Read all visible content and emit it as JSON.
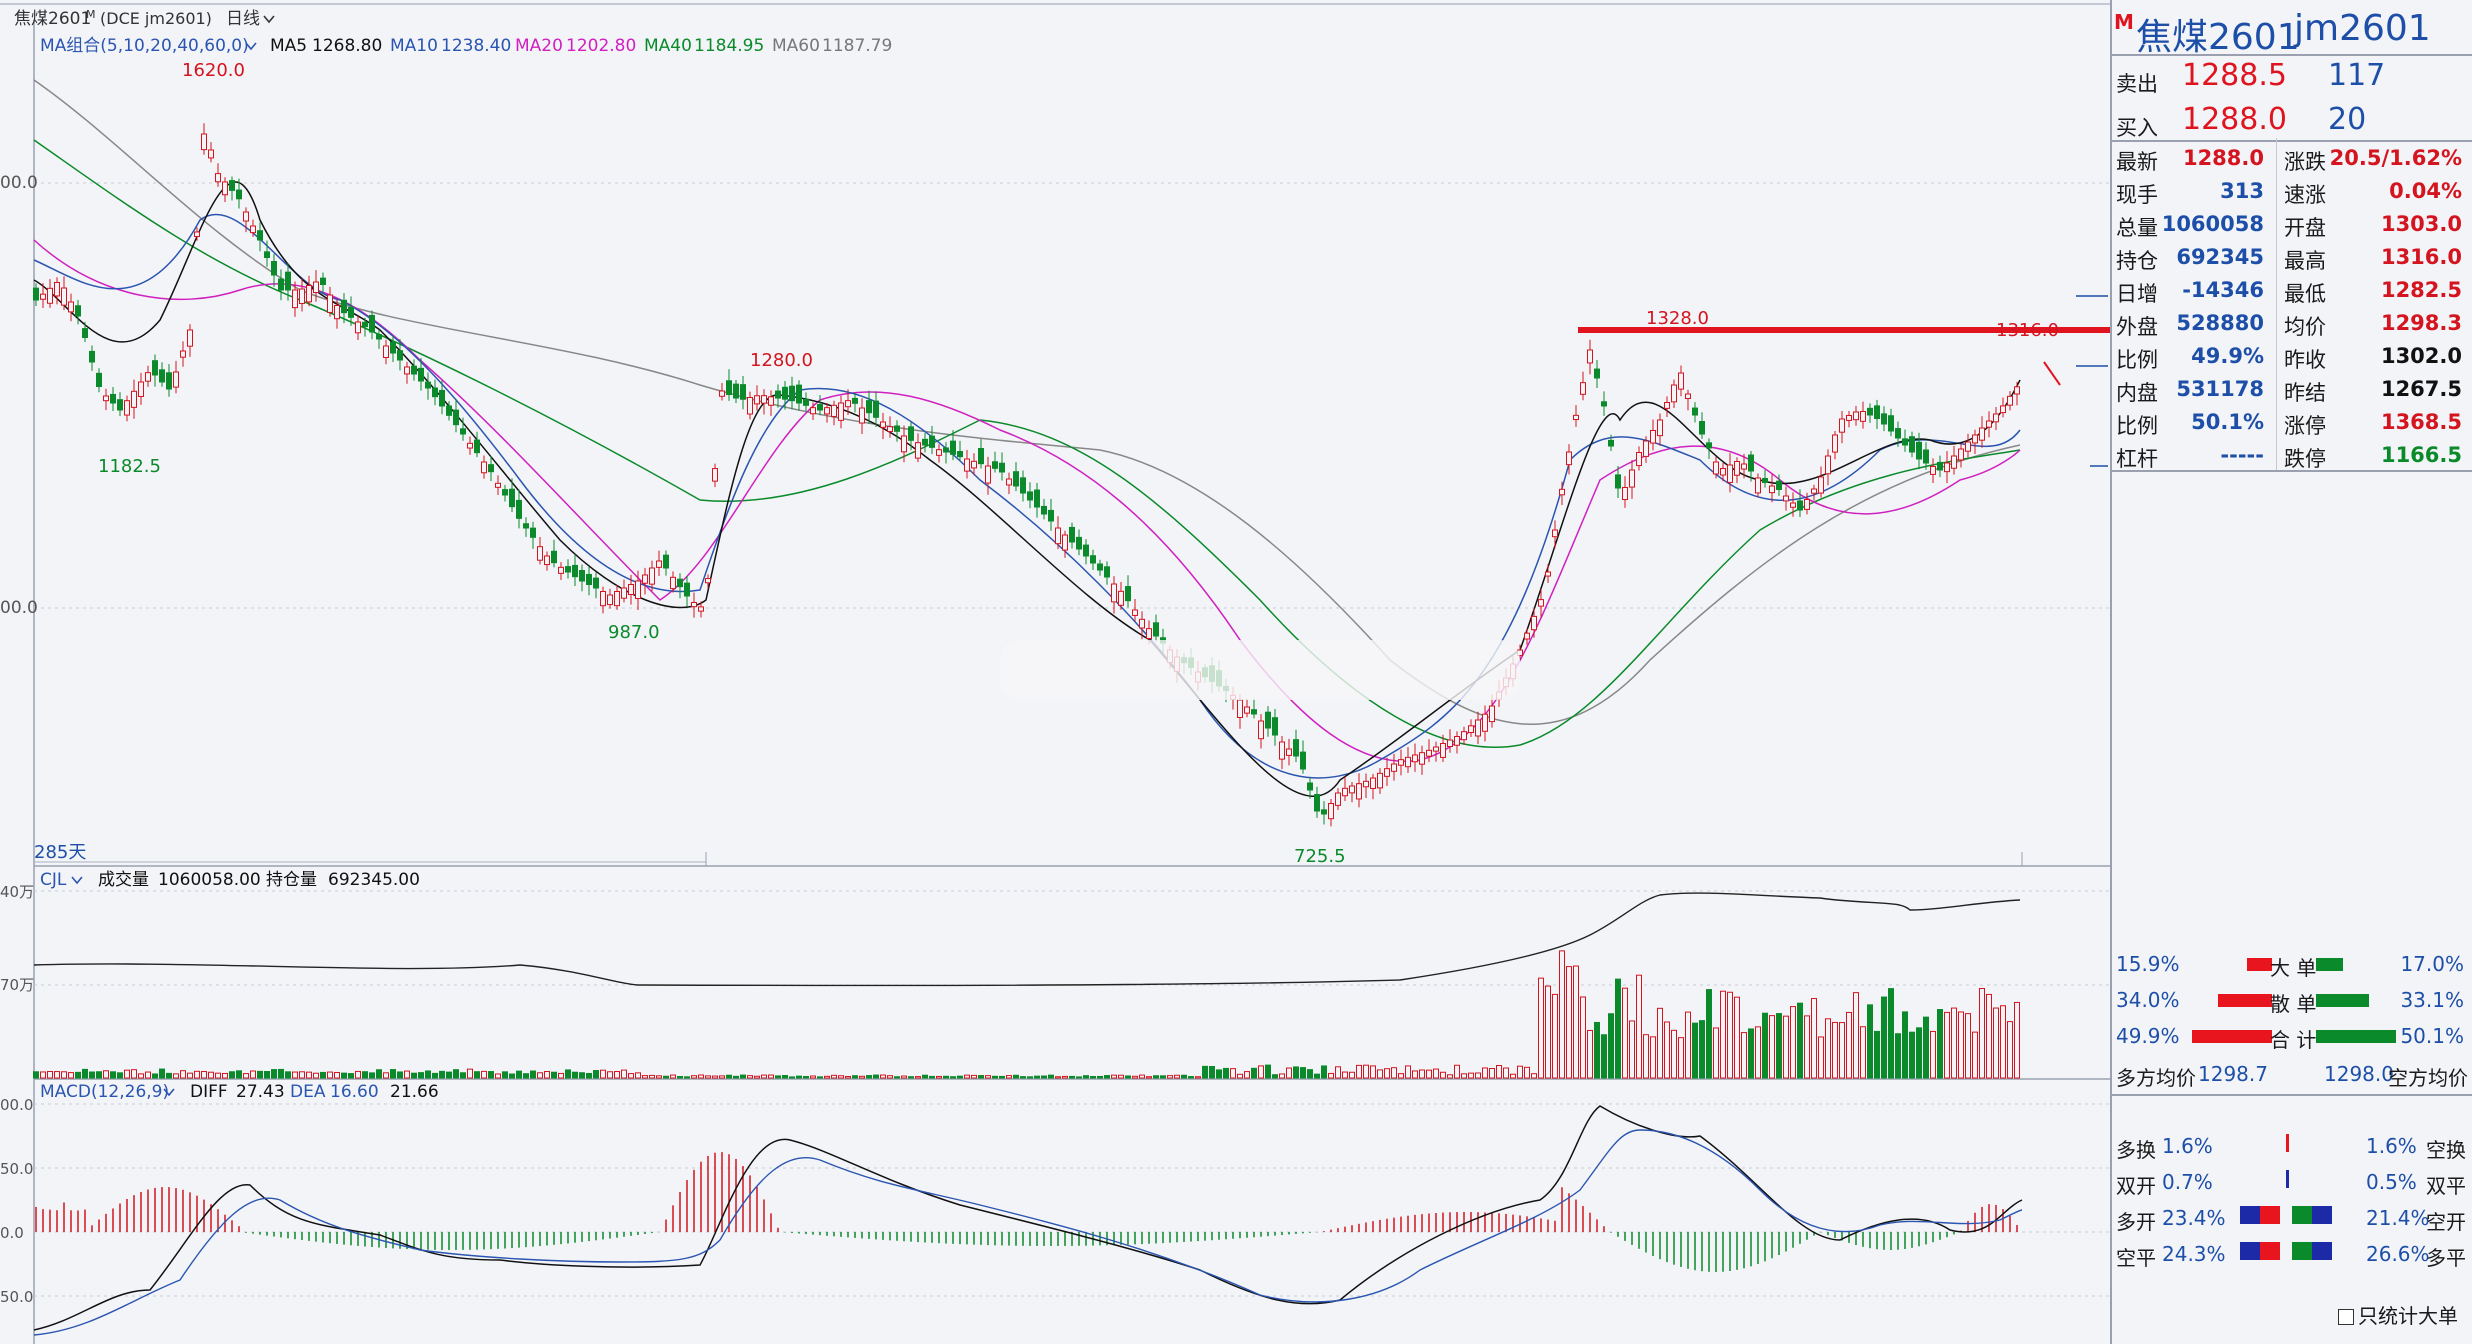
{
  "header": {
    "title": "焦煤2601",
    "title_mark": "M",
    "code_label": "(DCE  jm2601)",
    "period": "日线",
    "period_arrow": "chevron-down-icon"
  },
  "ma_legend": {
    "label": "MA组合(5,10,20,40,60,0)",
    "items": [
      {
        "name": "MA5",
        "value": "1268.80",
        "color": "#111111"
      },
      {
        "name": "MA10",
        "value": "1238.40",
        "color": "#2a55b0"
      },
      {
        "name": "MA20",
        "value": "1202.80",
        "color": "#d020c0"
      },
      {
        "name": "MA40",
        "value": "1184.95",
        "color": "#0a8a2a"
      },
      {
        "name": "MA60",
        "value": "1187.79",
        "color": "#777777"
      }
    ]
  },
  "price_axis_labels": [
    "00.0",
    "00.0"
  ],
  "annotations": {
    "peak": "1620.0",
    "low_left": "1182.5",
    "mid_high": "1280.0",
    "low_mid": "987.0",
    "bottom": "725.5",
    "high_right": "1328.0",
    "last_high": "1316.0",
    "days": "285天"
  },
  "volume_panel": {
    "label": "CJL",
    "volume_label": "成交量",
    "volume": "1060058.00",
    "oi_label": "持仓量",
    "oi": "692345.00",
    "axis_labels": [
      "40万",
      "70万"
    ]
  },
  "macd_panel": {
    "label": "MACD(12,26,9)",
    "diff_label": "DIFF",
    "diff": "27.43",
    "dea_label": "DEA",
    "dea": "16.60",
    "macd": "21.66",
    "axis_labels": [
      "00.0",
      "50.0",
      "0.0",
      "50.0"
    ]
  },
  "chart_data": {
    "type": "candlestick",
    "series_colors": {
      "up": "#d4141e",
      "down": "#0a8a2a"
    },
    "price_points": [
      {
        "label": "1620.0",
        "value": 1620.0
      },
      {
        "label": "1182.5",
        "value": 1182.5
      },
      {
        "label": "1280.0",
        "value": 1280.0
      },
      {
        "label": "987.0",
        "value": 987.0
      },
      {
        "label": "725.5",
        "value": 725.5
      },
      {
        "label": "1328.0",
        "value": 1328.0
      },
      {
        "label": "1316.0",
        "value": 1316.0
      }
    ],
    "resistance_line": 1328.0
  },
  "panel": {
    "title_mark": "M",
    "name": "焦煤2601",
    "code": "jm2601",
    "ask_label": "卖出",
    "ask_price": "1288.5",
    "ask_qty": "117",
    "bid_label": "买入",
    "bid_price": "1288.0",
    "bid_qty": "20",
    "quotes": [
      {
        "l1": "最新",
        "v1": "1288.0",
        "c1": "red",
        "l2": "涨跌",
        "v2": "20.5/1.62%",
        "c2": "red"
      },
      {
        "l1": "现手",
        "v1": "313",
        "c1": "blue",
        "l2": "速涨",
        "v2": "0.04%",
        "c2": "red"
      },
      {
        "l1": "总量",
        "v1": "1060058",
        "c1": "blue",
        "l2": "开盘",
        "v2": "1303.0",
        "c2": "red"
      },
      {
        "l1": "持仓",
        "v1": "692345",
        "c1": "blue",
        "l2": "最高",
        "v2": "1316.0",
        "c2": "red"
      },
      {
        "l1": "日增",
        "v1": "-14346",
        "c1": "blue",
        "l2": "最低",
        "v2": "1282.5",
        "c2": "red"
      },
      {
        "l1": "外盘",
        "v1": "528880",
        "c1": "blue",
        "l2": "均价",
        "v2": "1298.3",
        "c2": "red"
      },
      {
        "l1": "比例",
        "v1": "49.9%",
        "c1": "blue",
        "l2": "昨收",
        "v2": "1302.0",
        "c2": "black"
      },
      {
        "l1": "内盘",
        "v1": "531178",
        "c1": "blue",
        "l2": "昨结",
        "v2": "1267.5",
        "c2": "black"
      },
      {
        "l1": "比例",
        "v1": "50.1%",
        "c1": "blue",
        "l2": "涨停",
        "v2": "1368.5",
        "c2": "red"
      },
      {
        "l1": "杠杆",
        "v1": "-----",
        "c1": "blue",
        "l2": "跌停",
        "v2": "1166.5",
        "c2": "green"
      }
    ],
    "flows": [
      {
        "left": "15.9%",
        "label": "大 单",
        "right": "17.0%",
        "red_pct": 15.9,
        "green_pct": 17.0
      },
      {
        "left": "34.0%",
        "label": "散 单",
        "right": "33.1%",
        "red_pct": 34.0,
        "green_pct": 33.1
      },
      {
        "left": "49.9%",
        "label": "合 计",
        "right": "50.1%",
        "red_pct": 49.9,
        "green_pct": 50.1
      }
    ],
    "avg_long_label": "多方均价",
    "avg_long": "1298.7",
    "avg_short": "1298.0",
    "avg_short_label": "空方均价",
    "positions": [
      {
        "l": "多换",
        "lv": "1.6%",
        "rv": "1.6%",
        "r": "空换",
        "fill": 0.0
      },
      {
        "l": "双开",
        "lv": "0.7%",
        "rv": "0.5%",
        "r": "双平",
        "fill": 0.0
      },
      {
        "l": "多开",
        "lv": "23.4%",
        "rv": "21.4%",
        "r": "空开",
        "fill": 1.0
      },
      {
        "l": "空平",
        "lv": "24.3%",
        "rv": "26.6%",
        "r": "多平",
        "fill": 1.0
      }
    ],
    "checkbox_label": "只统计大单"
  }
}
